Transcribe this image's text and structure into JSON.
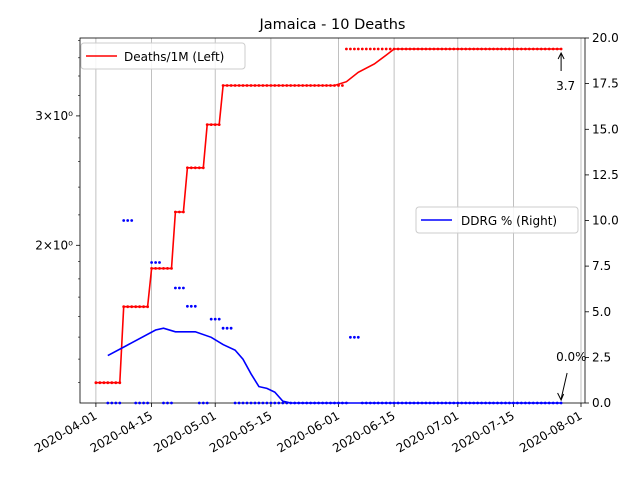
{
  "chart_data": {
    "type": "line",
    "title": "Jamaica - 10 Deaths",
    "x_axis": {
      "type": "date",
      "range": [
        "2020-03-28",
        "2020-08-02"
      ],
      "ticks": [
        "2020-04-01",
        "2020-04-15",
        "2020-05-01",
        "2020-05-15",
        "2020-06-01",
        "2020-06-15",
        "2020-07-01",
        "2020-07-15",
        "2020-08-01"
      ],
      "grid": true
    },
    "y_left": {
      "scale": "log",
      "range": [
        1.22,
        3.83
      ],
      "ticks": [
        {
          "value": 2,
          "label": "2×10⁰"
        },
        {
          "value": 3,
          "label": "3×10⁰"
        }
      ]
    },
    "y_right": {
      "scale": "linear",
      "range": [
        0,
        20
      ],
      "ticks": [
        "0.0",
        "2.5",
        "5.0",
        "7.5",
        "10.0",
        "12.5",
        "15.0",
        "17.5",
        "20.0"
      ]
    },
    "legends": [
      {
        "label": "Deaths/1M (Left)",
        "placement": "upper-left",
        "color": "#ff0000"
      },
      {
        "label": "DDRG % (Right)",
        "placement": "center-right",
        "color": "#0000ff"
      }
    ],
    "annotations": [
      {
        "text": "3.7",
        "x": "2020-07-27",
        "y": 3.7,
        "axis": "left"
      },
      {
        "text": "0.0%",
        "x": "2020-07-27",
        "y": 0.0,
        "axis": "right"
      }
    ],
    "series": [
      {
        "name": "Deaths/1M (Left)",
        "axis": "left",
        "color": "#ff0000",
        "style": "line+markers",
        "steps": [
          [
            "2020-04-01",
            1.3
          ],
          [
            "2020-04-08",
            1.65
          ],
          [
            "2020-04-15",
            1.86
          ],
          [
            "2020-04-21",
            2.22
          ],
          [
            "2020-04-24",
            2.55
          ],
          [
            "2020-04-29",
            2.92
          ],
          [
            "2020-05-03",
            3.3
          ],
          [
            "2020-06-03",
            3.7
          ]
        ],
        "end": "2020-07-27",
        "smoothed": [
          [
            "2020-05-03",
            3.3
          ],
          [
            "2020-05-31",
            3.3
          ],
          [
            "2020-06-03",
            3.34
          ],
          [
            "2020-06-06",
            3.44
          ],
          [
            "2020-06-10",
            3.53
          ],
          [
            "2020-06-13",
            3.63
          ],
          [
            "2020-06-15",
            3.7
          ],
          [
            "2020-07-27",
            3.7
          ]
        ]
      },
      {
        "name": "DDRG % (Right)",
        "axis": "right",
        "color": "#0000ff",
        "style": "line",
        "points": [
          [
            "2020-04-04",
            2.6
          ],
          [
            "2020-04-10",
            3.3
          ],
          [
            "2020-04-16",
            4.0
          ],
          [
            "2020-04-18",
            4.1
          ],
          [
            "2020-04-21",
            3.9
          ],
          [
            "2020-04-26",
            3.9
          ],
          [
            "2020-04-30",
            3.6
          ],
          [
            "2020-05-03",
            3.2
          ],
          [
            "2020-05-06",
            2.9
          ],
          [
            "2020-05-08",
            2.4
          ],
          [
            "2020-05-10",
            1.6
          ],
          [
            "2020-05-12",
            0.9
          ],
          [
            "2020-05-14",
            0.8
          ],
          [
            "2020-05-16",
            0.6
          ],
          [
            "2020-05-18",
            0.1
          ],
          [
            "2020-05-20",
            0.0
          ],
          [
            "2020-07-27",
            0.0
          ]
        ]
      },
      {
        "name": "",
        "axis": "right",
        "color": "#0000ff",
        "style": "markers",
        "clusters": [
          {
            "from": "2020-04-04",
            "to": "2020-04-07",
            "value": 0.0
          },
          {
            "from": "2020-04-08",
            "to": "2020-04-10",
            "value": 10.0
          },
          {
            "from": "2020-04-11",
            "to": "2020-04-14",
            "value": 0.0
          },
          {
            "from": "2020-04-15",
            "to": "2020-04-17",
            "value": 7.7
          },
          {
            "from": "2020-04-18",
            "to": "2020-04-20",
            "value": 0.0
          },
          {
            "from": "2020-04-21",
            "to": "2020-04-23",
            "value": 6.3
          },
          {
            "from": "2020-04-24",
            "to": "2020-04-26",
            "value": 5.3
          },
          {
            "from": "2020-04-27",
            "to": "2020-04-29",
            "value": 0.0
          },
          {
            "from": "2020-04-30",
            "to": "2020-05-02",
            "value": 4.6
          },
          {
            "from": "2020-05-03",
            "to": "2020-05-05",
            "value": 4.1
          },
          {
            "from": "2020-05-06",
            "to": "2020-06-03",
            "value": 0.0
          },
          {
            "from": "2020-06-04",
            "to": "2020-06-06",
            "value": 3.6
          },
          {
            "from": "2020-06-07",
            "to": "2020-07-27",
            "value": 0.0
          }
        ]
      }
    ]
  }
}
